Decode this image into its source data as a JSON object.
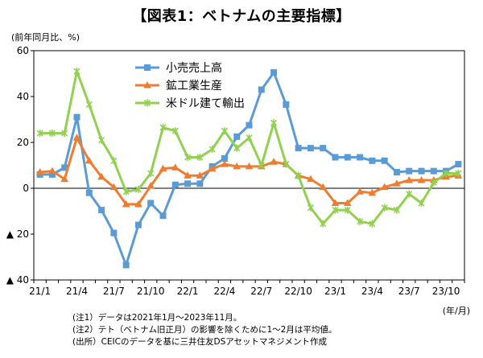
{
  "chart_data": {
    "type": "line",
    "title": "【図表1：ベトナムの主要指標】",
    "ylabel": "(前年同月比、%)",
    "xlabel": "(年/月)",
    "ylim": [
      -40,
      60
    ],
    "yticks": [
      60,
      40,
      20,
      0,
      -20,
      -40
    ],
    "ytick_labels": [
      "60",
      "40",
      "20",
      "0",
      "▲ 20",
      "▲ 40"
    ],
    "xtick_labels": [
      "21/1",
      "21/4",
      "21/7",
      "21/10",
      "22/1",
      "22/4",
      "22/7",
      "22/10",
      "23/1",
      "23/4",
      "23/7",
      "23/10"
    ],
    "x": [
      "21/1",
      "21/2",
      "21/3",
      "21/4",
      "21/5",
      "21/6",
      "21/7",
      "21/8",
      "21/9",
      "21/10",
      "21/11",
      "21/12",
      "22/1",
      "22/2",
      "22/3",
      "22/4",
      "22/5",
      "22/6",
      "22/7",
      "22/8",
      "22/9",
      "22/10",
      "22/11",
      "22/12",
      "23/1",
      "23/2",
      "23/3",
      "23/4",
      "23/5",
      "23/6",
      "23/7",
      "23/8",
      "23/9",
      "23/10",
      "23/11"
    ],
    "grid": false,
    "legend_position": "top-center",
    "series": [
      {
        "name": "小売売上高",
        "color": "#5b9bd5",
        "marker": "square",
        "values": [
          6,
          6,
          9,
          31,
          -2,
          -9.5,
          -19.5,
          -33.5,
          -16,
          -6.5,
          -12,
          1.5,
          2,
          2,
          9.5,
          13,
          22.5,
          27.5,
          43,
          50.5,
          36.5,
          17.5,
          17.5,
          17.5,
          13.5,
          13.5,
          13.5,
          12,
          12,
          7,
          7.5,
          7.5,
          7.5,
          7.5,
          10.5
        ]
      },
      {
        "name": "鉱工業生産",
        "color": "#ed7d31",
        "marker": "triangle",
        "values": [
          7,
          7.5,
          4,
          22,
          12,
          5,
          0.5,
          -7,
          -7,
          1,
          8.5,
          9,
          5.5,
          5.5,
          8.5,
          10.5,
          9.5,
          9.5,
          9.5,
          11.5,
          10.5,
          5.5,
          4,
          0.5,
          -6.5,
          -6.5,
          -1.5,
          -2,
          0.5,
          2,
          3.5,
          3.5,
          3.5,
          5,
          5.5
        ]
      },
      {
        "name": "米ドル建て輸出",
        "color": "#92d050",
        "marker": "x",
        "values": [
          24,
          24,
          24,
          51,
          36.5,
          21,
          12,
          -1.5,
          -0.5,
          6.5,
          26.5,
          25,
          13.5,
          13.5,
          17,
          25,
          17.5,
          22,
          10,
          28.5,
          10.5,
          5.5,
          -8.5,
          -15.5,
          -9.5,
          -9.5,
          -14.5,
          -15.5,
          -8.5,
          -9.5,
          -2.5,
          -6.5,
          2.5,
          6.5,
          6.5
        ]
      }
    ]
  },
  "notes": [
    "(注1）データは2021年1月～2023年11月。",
    "(注2）テト（ベトナム旧正月）の影響を除くために1～2月は平均値。",
    "(出所）CEICのデータを基に三井住友DSアセットマネジメント作成"
  ]
}
